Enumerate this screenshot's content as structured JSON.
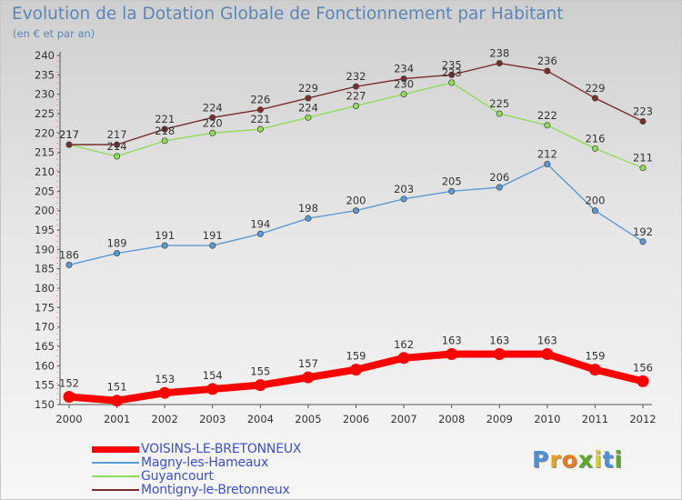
{
  "title": "Evolution de la Dotation Globale de Fonctionnement par Habitant",
  "subtitle": "(en € et par an)",
  "logo": {
    "letters": [
      "P",
      "r",
      "o",
      "x",
      "i",
      "t",
      "i"
    ],
    "colors": [
      "#4a90d9",
      "#e8a020",
      "#f07a18",
      "#5aaa2a",
      "#d9d020",
      "#4a90d9",
      "#5aaa2a"
    ]
  },
  "chart_data": {
    "type": "line",
    "x": [
      "2000",
      "2001",
      "2002",
      "2003",
      "2004",
      "2005",
      "2006",
      "2007",
      "2008",
      "2009",
      "2010",
      "2011",
      "2012"
    ],
    "ylim": [
      150,
      240
    ],
    "ytick_step": 5,
    "grid": false,
    "legend_position": "bottom-left",
    "series": [
      {
        "name": "VOISINS-LE-BRETONNEUX",
        "color": "#ff0000",
        "values": [
          152,
          151,
          153,
          154,
          155,
          157,
          159,
          162,
          163,
          163,
          163,
          159,
          156
        ]
      },
      {
        "name": "Magny-les-Hameaux",
        "color": "#5b9bd5",
        "values": [
          186,
          189,
          191,
          191,
          194,
          198,
          200,
          203,
          205,
          206,
          212,
          200,
          192
        ]
      },
      {
        "name": "Guyancourt",
        "color": "#8fdc5a",
        "values": [
          217,
          214,
          218,
          220,
          221,
          224,
          227,
          230,
          233,
          225,
          222,
          216,
          211
        ]
      },
      {
        "name": "Montigny-le-Bretonneux",
        "color": "#7a2e2e",
        "values": [
          217,
          217,
          221,
          224,
          226,
          229,
          232,
          234,
          235,
          238,
          236,
          229,
          223
        ]
      }
    ]
  }
}
